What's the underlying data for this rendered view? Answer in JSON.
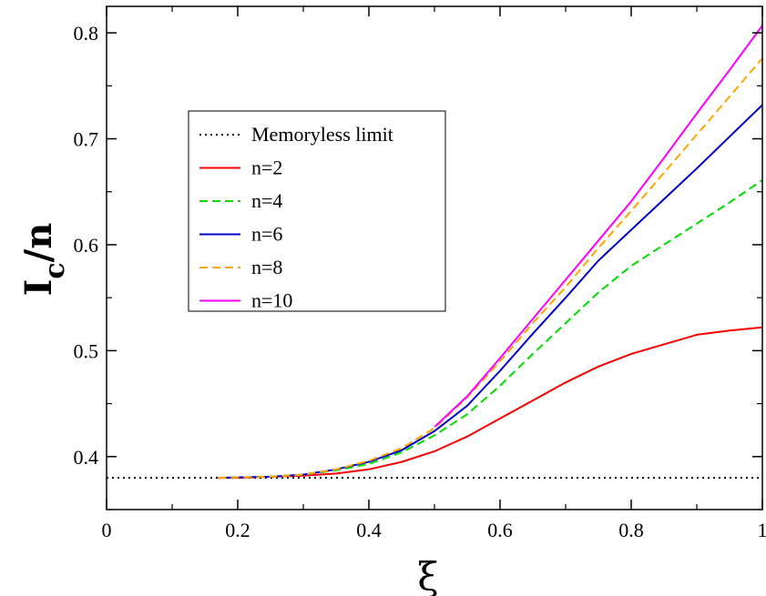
{
  "chart_data": {
    "type": "line",
    "xlabel": "ξ",
    "ylabel_main": "I",
    "ylabel_sub": "c",
    "ylabel_tail": "/n",
    "xlim": [
      0,
      1
    ],
    "ylim": [
      0.35,
      0.825
    ],
    "xticks": [
      0,
      0.2,
      0.4,
      0.6,
      0.8,
      1
    ],
    "xtick_labels": [
      "0",
      "0.2",
      "0.4",
      "0.6",
      "0.8",
      "1"
    ],
    "yticks": [
      0.4,
      0.5,
      0.6,
      0.7,
      0.8
    ],
    "ytick_labels": [
      "0.4",
      "0.5",
      "0.6",
      "0.7",
      "0.8"
    ],
    "grid": false,
    "legend_position": "upper-left",
    "reference_line": {
      "name": "Memoryless limit",
      "y": 0.38,
      "color": "#000000",
      "style": "dotted"
    },
    "series": [
      {
        "name": "n=2",
        "color": "#ff0000",
        "style": "solid",
        "x": [
          0.17,
          0.2,
          0.25,
          0.3,
          0.35,
          0.4,
          0.45,
          0.5,
          0.55,
          0.6,
          0.65,
          0.7,
          0.75,
          0.8,
          0.85,
          0.9,
          0.95,
          1.0
        ],
        "y": [
          0.38,
          0.38,
          0.381,
          0.382,
          0.384,
          0.388,
          0.395,
          0.405,
          0.419,
          0.436,
          0.453,
          0.47,
          0.485,
          0.497,
          0.506,
          0.515,
          0.519,
          0.522
        ]
      },
      {
        "name": "n=4",
        "color": "#00dd00",
        "style": "dashed",
        "x": [
          0.17,
          0.25,
          0.3,
          0.35,
          0.4,
          0.45,
          0.5,
          0.55,
          0.6,
          0.65,
          0.7,
          0.75,
          0.8,
          0.85,
          0.9,
          0.95,
          1.0
        ],
        "y": [
          0.38,
          0.381,
          0.383,
          0.387,
          0.393,
          0.404,
          0.42,
          0.44,
          0.467,
          0.497,
          0.526,
          0.555,
          0.58,
          0.6,
          0.62,
          0.64,
          0.661
        ]
      },
      {
        "name": "n=6",
        "color": "#0000cc",
        "style": "solid",
        "x": [
          0.17,
          0.25,
          0.3,
          0.35,
          0.4,
          0.45,
          0.5,
          0.55,
          0.6,
          0.65,
          0.7,
          0.75,
          0.8,
          0.85,
          0.9,
          0.95,
          1.0
        ],
        "y": [
          0.38,
          0.381,
          0.383,
          0.388,
          0.395,
          0.406,
          0.424,
          0.448,
          0.481,
          0.516,
          0.55,
          0.585,
          0.614,
          0.643,
          0.672,
          0.702,
          0.732
        ]
      },
      {
        "name": "n=8",
        "color": "#ffa500",
        "style": "dashed",
        "x": [
          0.17,
          0.25,
          0.3,
          0.35,
          0.4,
          0.45,
          0.5,
          0.55,
          0.6,
          0.65,
          0.7,
          0.75,
          0.8,
          0.85,
          0.9,
          0.95,
          1.0
        ],
        "y": [
          0.38,
          0.381,
          0.383,
          0.388,
          0.396,
          0.408,
          0.427,
          0.456,
          0.49,
          0.526,
          0.56,
          0.597,
          0.632,
          0.668,
          0.704,
          0.74,
          0.776
        ]
      },
      {
        "name": "n=10",
        "color": "#ff00ff",
        "style": "solid",
        "x": [
          0.5,
          0.55,
          0.6,
          0.65,
          0.7,
          0.75,
          0.8,
          0.85,
          0.9,
          0.95,
          1.0
        ],
        "y": [
          0.428,
          0.457,
          0.493,
          0.53,
          0.567,
          0.604,
          0.641,
          0.682,
          0.724,
          0.765,
          0.807
        ]
      }
    ]
  }
}
